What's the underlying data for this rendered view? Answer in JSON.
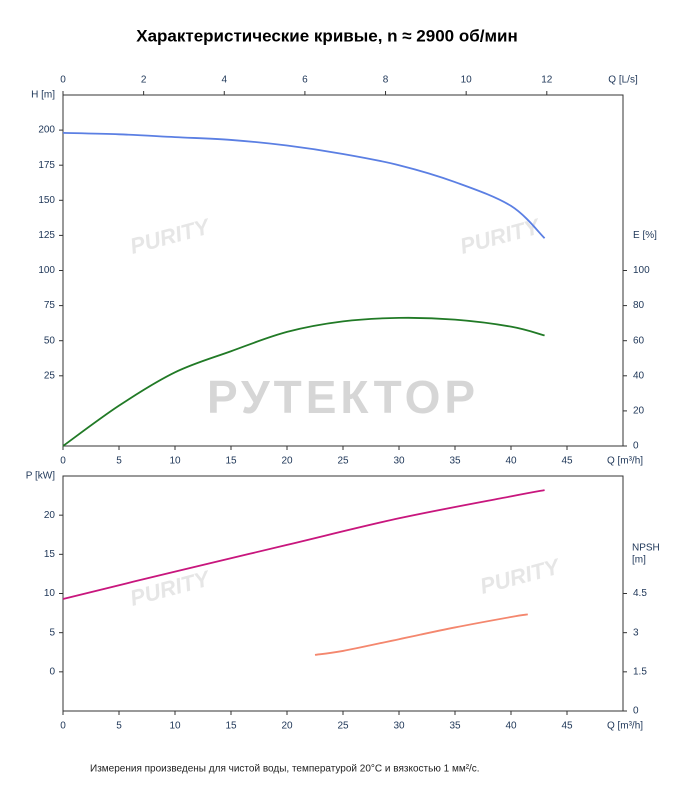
{
  "title": "Характеристические кривые, n ≈ 2900 об/мин",
  "note": "Измерения произведены для чистой воды, температурой 20°C и вязкостью 1 мм²/с.",
  "watermarks": [
    "РУТЕКТОР",
    "PURITY"
  ],
  "chart_data": [
    {
      "type": "line",
      "x_label": "Q [m³/h]",
      "xlim": [
        0,
        50
      ],
      "xticks": [
        0,
        5,
        10,
        15,
        20,
        25,
        30,
        35,
        40,
        45
      ],
      "x2_label": "Q [L/s]",
      "x2lim": [
        0,
        13.89
      ],
      "x2ticks": [
        0,
        2,
        4,
        6,
        8,
        10,
        12
      ],
      "y_label": "H [m]",
      "ylim": [
        -25,
        225
      ],
      "yticks": [
        25,
        50,
        75,
        100,
        125,
        150,
        175,
        200
      ],
      "y2_label": "E [%]",
      "y2lim": [
        0,
        200
      ],
      "y2ticks": [
        0,
        20,
        40,
        60,
        80,
        100
      ],
      "series": [
        {
          "color": "#5b7fe3",
          "axis": "y",
          "x": [
            0,
            5,
            10,
            15,
            20,
            25,
            30,
            35,
            40,
            43
          ],
          "values": [
            198,
            197,
            195,
            193,
            189,
            183,
            175,
            163,
            146,
            123
          ]
        },
        {
          "color": "#217a26",
          "axis": "y2",
          "x": [
            0,
            5,
            10,
            15,
            20,
            25,
            30,
            35,
            40,
            43
          ],
          "values": [
            0,
            23,
            42,
            54,
            65,
            71,
            73,
            72,
            68,
            63
          ]
        }
      ]
    },
    {
      "type": "line",
      "x_label": "Q [m³/h]",
      "xlim": [
        0,
        50
      ],
      "xticks": [
        0,
        5,
        10,
        15,
        20,
        25,
        30,
        35,
        40,
        45
      ],
      "y_label": "P [kW]",
      "ylim": [
        -5,
        25
      ],
      "yticks": [
        0,
        5,
        10,
        15,
        20
      ],
      "y2_label": [
        "NPSH",
        "[m]"
      ],
      "y2lim": [
        0,
        9
      ],
      "y2ticks": [
        0,
        1.5,
        3,
        4.5
      ],
      "series": [
        {
          "color": "#c8167d",
          "axis": "y",
          "x": [
            0,
            10,
            20,
            30,
            40,
            43
          ],
          "values": [
            9.3,
            12.8,
            16.2,
            19.6,
            22.4,
            23.2
          ]
        },
        {
          "color": "#f4876e",
          "axis": "y2",
          "x": [
            22.5,
            25,
            30,
            35,
            40,
            41.5
          ],
          "values": [
            2.15,
            2.3,
            2.75,
            3.2,
            3.6,
            3.7
          ]
        }
      ]
    }
  ]
}
